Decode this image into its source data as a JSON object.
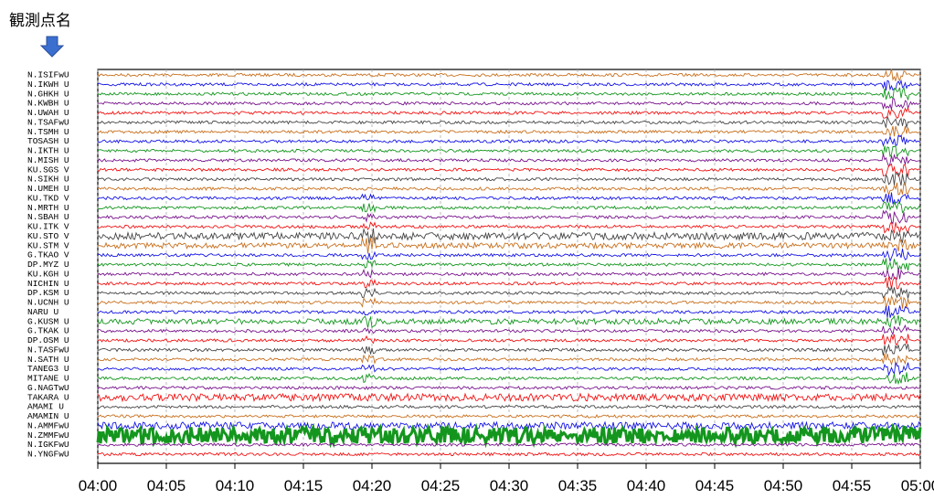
{
  "chart_data": {
    "type": "seismogram",
    "title": "観測点名",
    "series": [
      {
        "name": "N.ISIFwU",
        "color": "#c8701e"
      },
      {
        "name": "N.IKWH U",
        "color": "#1414e6"
      },
      {
        "name": "N.GHKH U",
        "color": "#14961e"
      },
      {
        "name": "N.KWBH U",
        "color": "#78148c"
      },
      {
        "name": "N.UWAH U",
        "color": "#f01414"
      },
      {
        "name": "N.TSAFwU",
        "color": "#464646"
      },
      {
        "name": "N.TSMH U",
        "color": "#c8701e"
      },
      {
        "name": "TOSASH U",
        "color": "#1414e6"
      },
      {
        "name": "N.IKTH U",
        "color": "#14961e"
      },
      {
        "name": "N.MISH U",
        "color": "#78148c"
      },
      {
        "name": "KU.SGS V",
        "color": "#f01414"
      },
      {
        "name": "N.SIKH U",
        "color": "#464646"
      },
      {
        "name": "N.UMEH U",
        "color": "#c8701e"
      },
      {
        "name": "KU.TKD V",
        "color": "#1414e6"
      },
      {
        "name": "N.MRTH U",
        "color": "#14961e"
      },
      {
        "name": "N.SBAH U",
        "color": "#78148c"
      },
      {
        "name": "KU.ITK V",
        "color": "#f01414"
      },
      {
        "name": "KU.STO V",
        "color": "#464646"
      },
      {
        "name": "KU.STM V",
        "color": "#c8701e"
      },
      {
        "name": "G.TKAO V",
        "color": "#1414e6"
      },
      {
        "name": "DP.MYZ U",
        "color": "#14961e"
      },
      {
        "name": "KU.KGH U",
        "color": "#78148c"
      },
      {
        "name": "NICHIN U",
        "color": "#f01414"
      },
      {
        "name": "DP.KSM U",
        "color": "#464646"
      },
      {
        "name": "N.UCNH U",
        "color": "#c8701e"
      },
      {
        "name": "NARU   U",
        "color": "#1414e6"
      },
      {
        "name": "G.KUSM U",
        "color": "#14961e"
      },
      {
        "name": "G.TKAK U",
        "color": "#78148c"
      },
      {
        "name": "DP.OSM U",
        "color": "#f01414"
      },
      {
        "name": "N.TASFwU",
        "color": "#464646"
      },
      {
        "name": "N.SATH U",
        "color": "#c8701e"
      },
      {
        "name": "TANEG3 U",
        "color": "#1414e6"
      },
      {
        "name": "MITANE U",
        "color": "#14961e"
      },
      {
        "name": "G.NAGTwU",
        "color": "#78148c"
      },
      {
        "name": "TAKARA U",
        "color": "#f01414"
      },
      {
        "name": "AMAMI  U",
        "color": "#464646"
      },
      {
        "name": "AMAMIN U",
        "color": "#c8701e"
      },
      {
        "name": "N.AMMFwU",
        "color": "#1414e6"
      },
      {
        "name": "N.ZMMFwU",
        "color": "#14961e"
      },
      {
        "name": "N.IGKFwU",
        "color": "#78148c"
      },
      {
        "name": "N.YNGFwU",
        "color": "#f01414"
      }
    ],
    "xlim": [
      0,
      60
    ],
    "xticks": [
      {
        "value": 0,
        "label": "04:00"
      },
      {
        "value": 5,
        "label": "04:05"
      },
      {
        "value": 10,
        "label": "04:10"
      },
      {
        "value": 15,
        "label": "04:15"
      },
      {
        "value": 20,
        "label": "04:20"
      },
      {
        "value": 25,
        "label": "04:25"
      },
      {
        "value": 30,
        "label": "04:30"
      },
      {
        "value": 35,
        "label": "04:35"
      },
      {
        "value": 40,
        "label": "04:40"
      },
      {
        "value": 45,
        "label": "04:45"
      },
      {
        "value": 50,
        "label": "04:50"
      },
      {
        "value": 55,
        "label": "04:55"
      },
      {
        "value": 60,
        "label": "05:00"
      }
    ],
    "grid": true
  }
}
